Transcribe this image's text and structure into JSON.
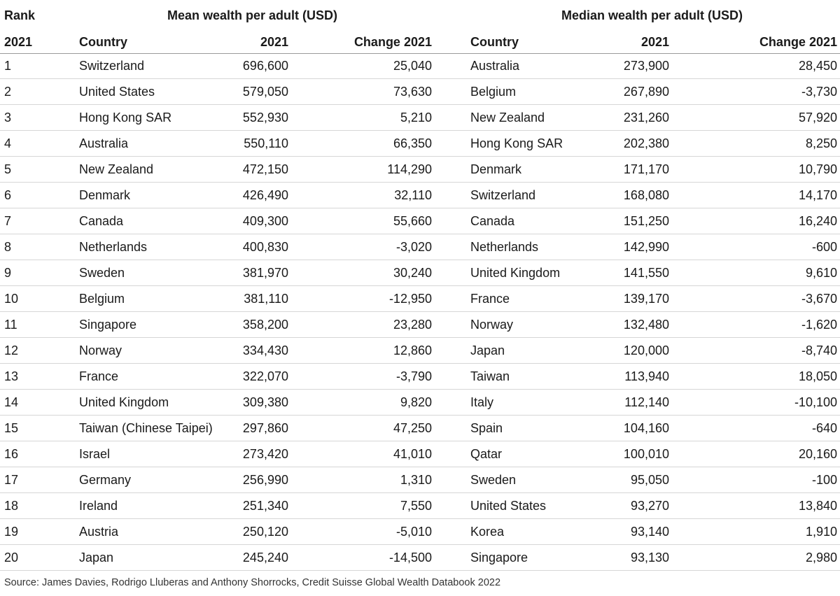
{
  "header": {
    "rank_label": "Rank",
    "mean_title": "Mean wealth per adult (USD)",
    "median_title": "Median wealth per adult (USD)",
    "rank_year": "2021",
    "mean_country": "Country",
    "mean_year": "2021",
    "mean_change": "Change 2021",
    "median_country": "Country",
    "median_year": "2021",
    "median_change": "Change 2021"
  },
  "rows": [
    {
      "rank": "1",
      "mean_country": "Switzerland",
      "mean": "696,600",
      "mean_change": "25,040",
      "median_country": "Australia",
      "median": "273,900",
      "median_change": "28,450"
    },
    {
      "rank": "2",
      "mean_country": "United States",
      "mean": "579,050",
      "mean_change": "73,630",
      "median_country": "Belgium",
      "median": "267,890",
      "median_change": "-3,730"
    },
    {
      "rank": "3",
      "mean_country": "Hong Kong SAR",
      "mean": "552,930",
      "mean_change": "5,210",
      "median_country": "New Zealand",
      "median": "231,260",
      "median_change": "57,920"
    },
    {
      "rank": "4",
      "mean_country": "Australia",
      "mean": "550,110",
      "mean_change": "66,350",
      "median_country": "Hong Kong SAR",
      "median": "202,380",
      "median_change": "8,250"
    },
    {
      "rank": "5",
      "mean_country": "New Zealand",
      "mean": "472,150",
      "mean_change": "114,290",
      "median_country": "Denmark",
      "median": "171,170",
      "median_change": "10,790"
    },
    {
      "rank": "6",
      "mean_country": "Denmark",
      "mean": "426,490",
      "mean_change": "32,110",
      "median_country": "Switzerland",
      "median": "168,080",
      "median_change": "14,170"
    },
    {
      "rank": "7",
      "mean_country": "Canada",
      "mean": "409,300",
      "mean_change": "55,660",
      "median_country": "Canada",
      "median": "151,250",
      "median_change": "16,240"
    },
    {
      "rank": "8",
      "mean_country": "Netherlands",
      "mean": "400,830",
      "mean_change": "-3,020",
      "median_country": "Netherlands",
      "median": "142,990",
      "median_change": "-600"
    },
    {
      "rank": "9",
      "mean_country": "Sweden",
      "mean": "381,970",
      "mean_change": "30,240",
      "median_country": "United Kingdom",
      "median": "141,550",
      "median_change": "9,610"
    },
    {
      "rank": "10",
      "mean_country": "Belgium",
      "mean": "381,110",
      "mean_change": "-12,950",
      "median_country": "France",
      "median": "139,170",
      "median_change": "-3,670"
    },
    {
      "rank": "11",
      "mean_country": "Singapore",
      "mean": "358,200",
      "mean_change": "23,280",
      "median_country": "Norway",
      "median": "132,480",
      "median_change": "-1,620"
    },
    {
      "rank": "12",
      "mean_country": "Norway",
      "mean": "334,430",
      "mean_change": "12,860",
      "median_country": "Japan",
      "median": "120,000",
      "median_change": "-8,740"
    },
    {
      "rank": "13",
      "mean_country": "France",
      "mean": "322,070",
      "mean_change": "-3,790",
      "median_country": "Taiwan",
      "median": "113,940",
      "median_change": "18,050"
    },
    {
      "rank": "14",
      "mean_country": "United Kingdom",
      "mean": "309,380",
      "mean_change": "9,820",
      "median_country": "Italy",
      "median": "112,140",
      "median_change": "-10,100"
    },
    {
      "rank": "15",
      "mean_country": "Taiwan (Chinese Taipei)",
      "mean": "297,860",
      "mean_change": "47,250",
      "median_country": "Spain",
      "median": "104,160",
      "median_change": "-640"
    },
    {
      "rank": "16",
      "mean_country": "Israel",
      "mean": "273,420",
      "mean_change": "41,010",
      "median_country": "Qatar",
      "median": "100,010",
      "median_change": "20,160"
    },
    {
      "rank": "17",
      "mean_country": "Germany",
      "mean": "256,990",
      "mean_change": "1,310",
      "median_country": "Sweden",
      "median": "95,050",
      "median_change": "-100"
    },
    {
      "rank": "18",
      "mean_country": "Ireland",
      "mean": "251,340",
      "mean_change": "7,550",
      "median_country": "United States",
      "median": "93,270",
      "median_change": "13,840"
    },
    {
      "rank": "19",
      "mean_country": "Austria",
      "mean": "250,120",
      "mean_change": "-5,010",
      "median_country": "Korea",
      "median": "93,140",
      "median_change": "1,910"
    },
    {
      "rank": "20",
      "mean_country": "Japan",
      "mean": "245,240",
      "mean_change": "-14,500",
      "median_country": "Singapore",
      "median": "93,130",
      "median_change": "2,980"
    }
  ],
  "source": "Source: James Davies, Rodrigo Lluberas and Anthony Shorrocks, Credit Suisse Global Wealth Databook 2022"
}
